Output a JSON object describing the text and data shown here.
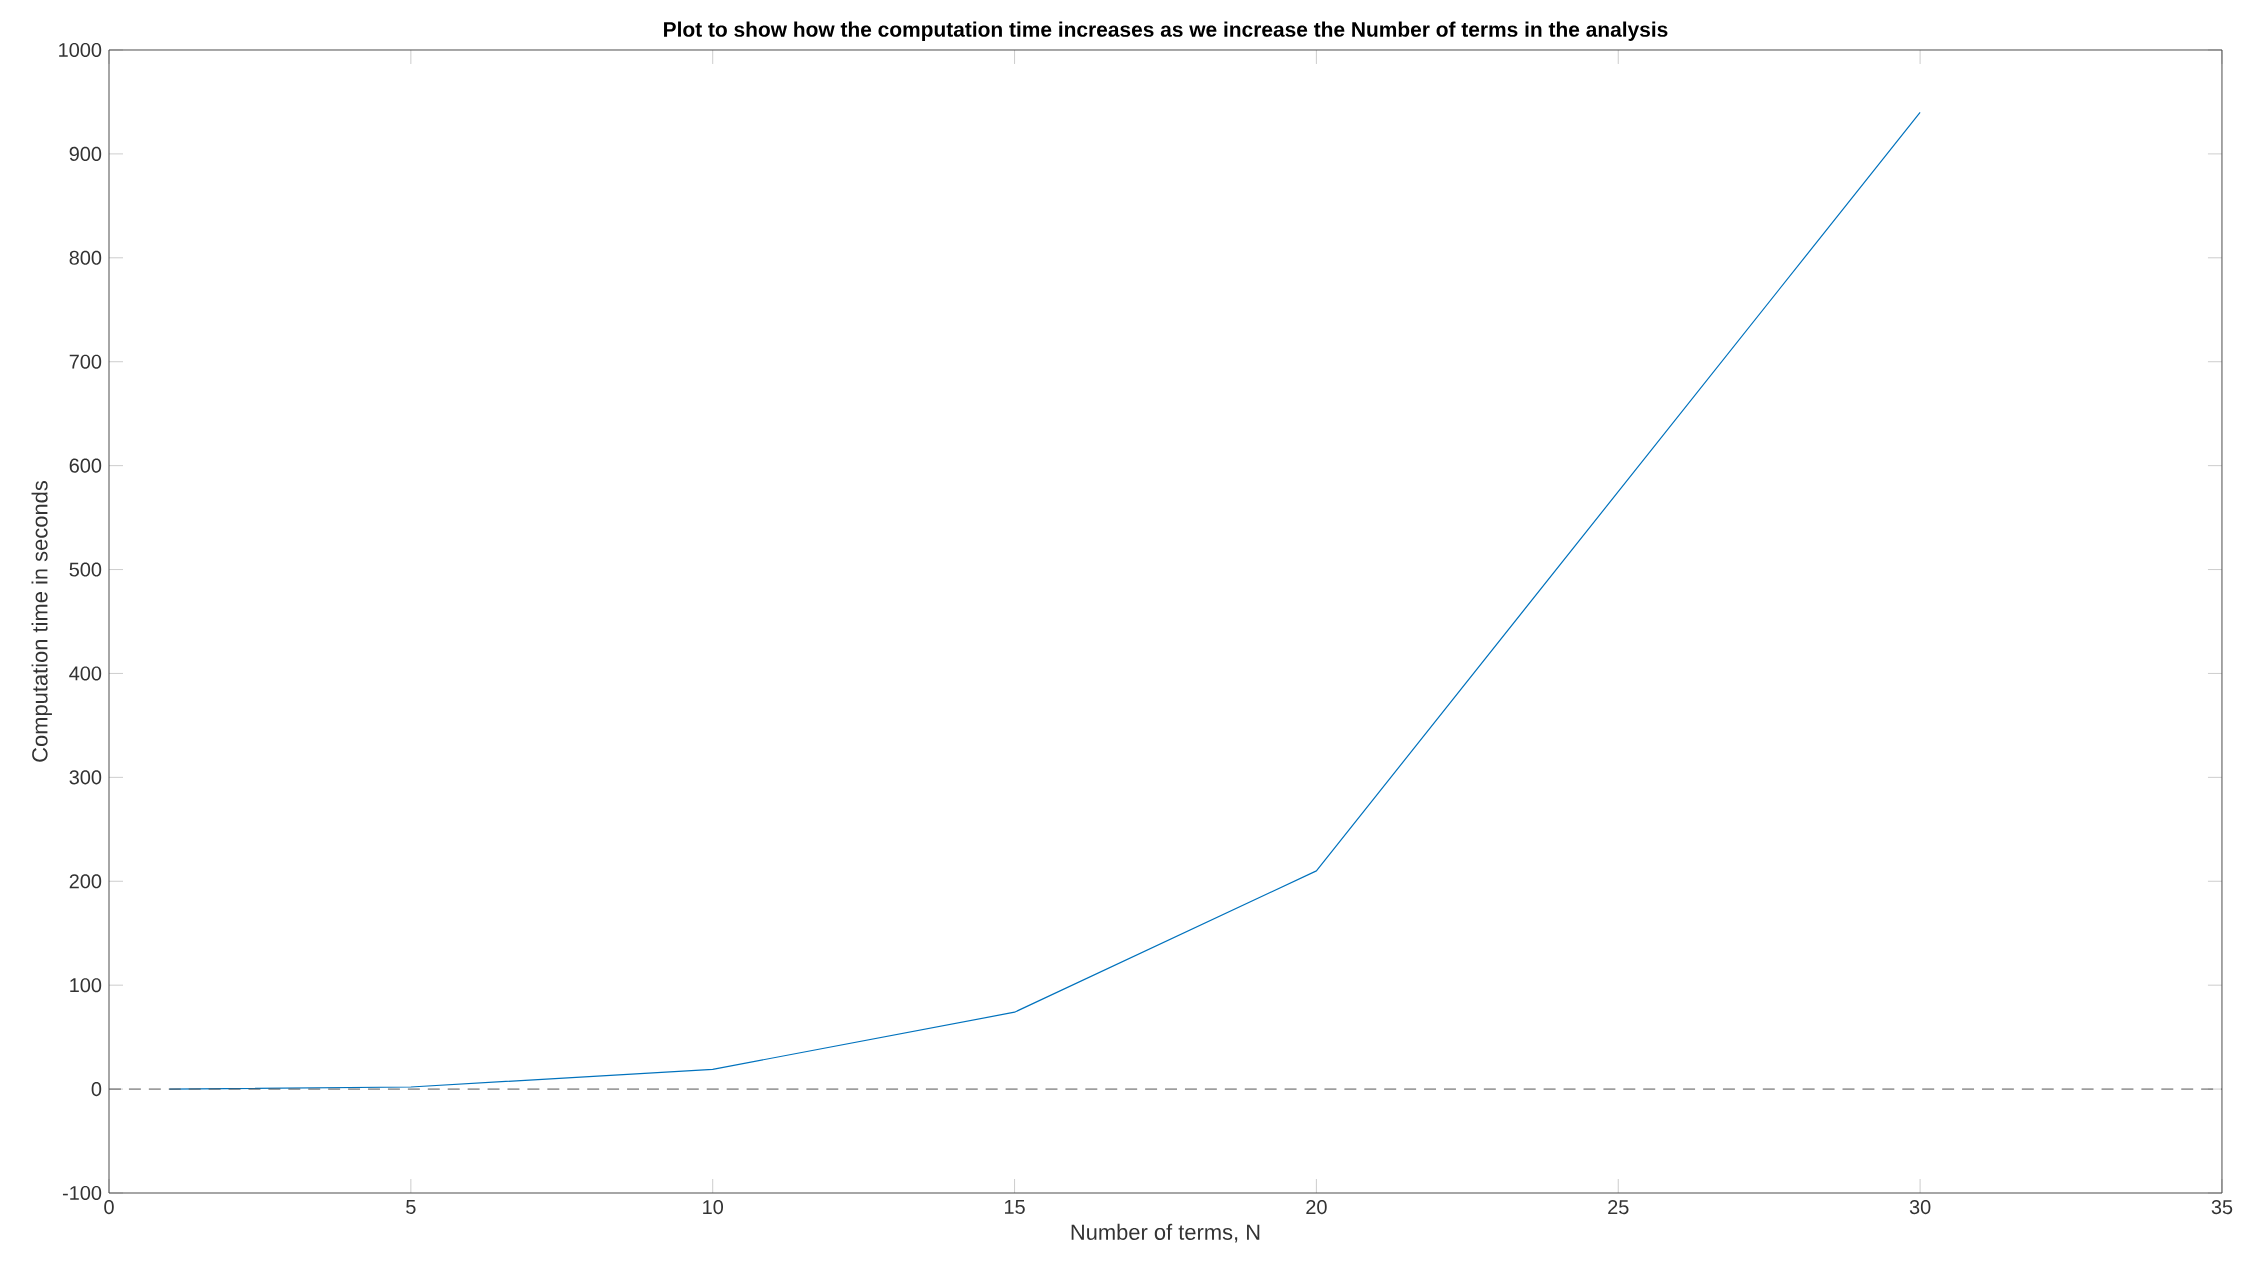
{
  "chart_data": {
    "type": "line",
    "title": "Plot to show how the computation time increases as we increase the Number of terms in the analysis",
    "xlabel": "Number of terms,  N",
    "ylabel": "Computation time in seconds",
    "x": [
      1,
      5,
      10,
      15,
      20,
      30
    ],
    "series": [
      {
        "color": "#0072bd",
        "values": [
          0,
          2,
          19,
          74,
          210,
          940
        ]
      }
    ],
    "xlim": [
      0,
      35
    ],
    "xticks": [
      0,
      5,
      10,
      15,
      20,
      25,
      30,
      35
    ],
    "ylim": [
      -100,
      1000
    ],
    "yticks": [
      -100,
      0,
      100,
      200,
      300,
      400,
      500,
      600,
      700,
      800,
      900,
      1000
    ],
    "ref_lines": [
      {
        "axis": "y",
        "value": 0,
        "color": "#555555",
        "line_style": "dashed"
      }
    ],
    "grid": false,
    "marker": "none",
    "line_style": "solid"
  }
}
